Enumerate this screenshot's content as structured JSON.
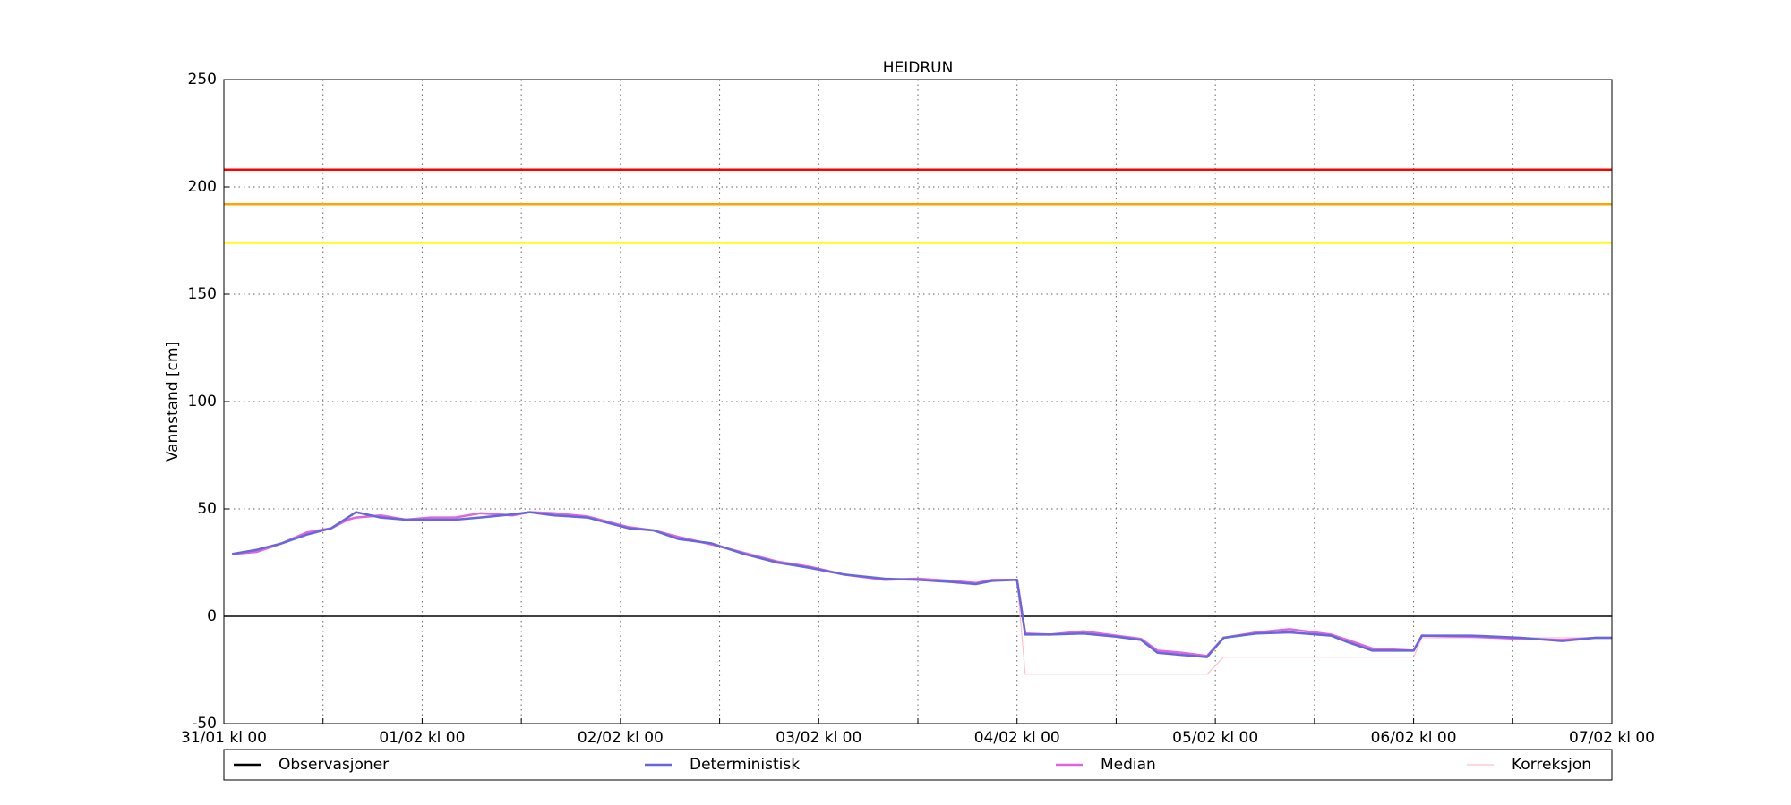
{
  "chart_data": {
    "type": "line",
    "title": "HEIDRUN",
    "y_label": "Vannstand [cm]",
    "ylim": [
      -50,
      250
    ],
    "yticks": [
      -50,
      0,
      50,
      100,
      150,
      200,
      250
    ],
    "xlim": [
      0,
      168
    ],
    "xticks": [
      {
        "value": 0,
        "label": "31/01 kl 00"
      },
      {
        "value": 12,
        "label": null
      },
      {
        "value": 24,
        "label": "01/02 kl 00"
      },
      {
        "value": 36,
        "label": null
      },
      {
        "value": 48,
        "label": "02/02 kl 00"
      },
      {
        "value": 60,
        "label": null
      },
      {
        "value": 72,
        "label": "03/02 kl 00"
      },
      {
        "value": 84,
        "label": null
      },
      {
        "value": 96,
        "label": "04/02 kl 00"
      },
      {
        "value": 108,
        "label": null
      },
      {
        "value": 120,
        "label": "05/02 kl 00"
      },
      {
        "value": 132,
        "label": null
      },
      {
        "value": 144,
        "label": "06/02 kl 00"
      },
      {
        "value": 156,
        "label": null
      },
      {
        "value": 168,
        "label": "07/02 kl 00"
      }
    ],
    "grid": true,
    "hlines": [
      {
        "value": 208,
        "color": "#ff0000"
      },
      {
        "value": 192,
        "color": "#ffa500"
      },
      {
        "value": 174,
        "color": "#ffff00"
      },
      {
        "value": 0,
        "color": "#000000"
      }
    ],
    "series": [
      {
        "name": "Observasjoner",
        "color": "#000000",
        "x": [],
        "values": []
      },
      {
        "name": "Deterministisk",
        "color": "#6666dd",
        "x": [
          1,
          4,
          7,
          10,
          13,
          15,
          16,
          19,
          22,
          25,
          28,
          31,
          35,
          37,
          40,
          44,
          46,
          49,
          52,
          55,
          59,
          63,
          67,
          71,
          75,
          80,
          84,
          88,
          91,
          93,
          96,
          97,
          100,
          104,
          108,
          111,
          113,
          116,
          119,
          121,
          125,
          129,
          134,
          136,
          139,
          144,
          145,
          151,
          157,
          162,
          166,
          168
        ],
        "values": [
          29,
          31,
          34,
          38,
          41,
          46,
          48.5,
          46,
          45,
          45,
          45,
          46,
          47.5,
          48.5,
          47,
          46,
          44,
          41,
          40,
          36,
          34,
          29,
          25,
          22.5,
          19.5,
          17.5,
          17,
          16,
          15,
          16.5,
          17,
          -8.5,
          -8.5,
          -8,
          -9.5,
          -11,
          -17,
          -18,
          -19,
          -10,
          -8,
          -7.5,
          -9,
          -12,
          -16,
          -16,
          -9,
          -9,
          -10,
          -11.5,
          -10,
          -10
        ]
      },
      {
        "name": "Median",
        "color": "#dd66dd",
        "x": [
          1,
          4,
          7,
          10,
          13,
          15,
          16,
          19,
          22,
          25,
          28,
          31,
          35,
          37,
          40,
          44,
          46,
          49,
          52,
          55,
          59,
          63,
          67,
          71,
          75,
          80,
          84,
          88,
          91,
          93,
          96,
          97,
          100,
          104,
          108,
          111,
          113,
          116,
          119,
          121,
          125,
          129,
          134,
          136,
          139,
          144,
          145,
          151,
          157,
          162,
          166,
          168
        ],
        "values": [
          29,
          30,
          34,
          39,
          41,
          45,
          46,
          47,
          45,
          46,
          46,
          48,
          47,
          48.5,
          48,
          46.5,
          44.5,
          41.5,
          40,
          37,
          33.5,
          29.5,
          25.5,
          23,
          19.5,
          17,
          17.5,
          16.5,
          15.5,
          17,
          17,
          -8,
          -8.5,
          -7,
          -9,
          -10.5,
          -16,
          -17,
          -18.5,
          -10,
          -7.5,
          -6,
          -8.5,
          -11,
          -15,
          -16,
          -9,
          -9.5,
          -10.5,
          -11,
          -10,
          -10
        ]
      },
      {
        "name": "Korreksjon",
        "color": "#ffc0cb",
        "x": [
          96,
          97,
          119,
          121,
          144,
          145,
          168
        ],
        "values": [
          17,
          -27,
          -27,
          -19,
          -19,
          -10,
          -10
        ]
      }
    ]
  }
}
